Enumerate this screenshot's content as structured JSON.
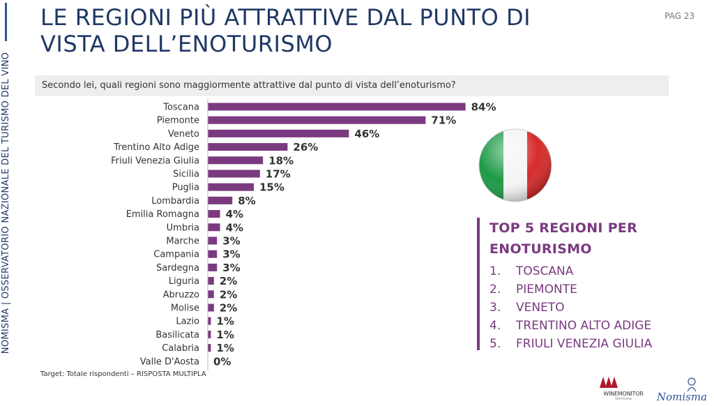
{
  "side_label": "NOMISMA | OSSERVATORIO NAZIONALE DEL TURISMO DEL VINO",
  "title": "LE REGIONI PIÙ ATTRATTIVE DAL PUNTO DI VISTA DELL’ENOTURISMO",
  "page": "PAG 23",
  "question": "Secondo lei, quali regioni sono maggiormente attrattive dal punto di vista dell’enoturismo?",
  "chart_data": {
    "type": "bar",
    "orientation": "horizontal",
    "categories": [
      "Toscana",
      "Piemonte",
      "Veneto",
      "Trentino Alto Adige",
      "Friuli Venezia Giulia",
      "Sicilia",
      "Puglia",
      "Lombardia",
      "Emilia Romagna",
      "Umbria",
      "Marche",
      "Campania",
      "Sardegna",
      "Liguria",
      "Abruzzo",
      "Molise",
      "Lazio",
      "Basilicata",
      "Calabria",
      "Valle D'Aosta"
    ],
    "values": [
      84,
      71,
      46,
      26,
      18,
      17,
      15,
      8,
      4,
      4,
      3,
      3,
      3,
      2,
      2,
      2,
      1,
      1,
      1,
      0
    ],
    "value_labels": [
      "84%",
      "71%",
      "46%",
      "26%",
      "18%",
      "17%",
      "15%",
      "8%",
      "4%",
      "4%",
      "3%",
      "3%",
      "3%",
      "2%",
      "2%",
      "2%",
      "1%",
      "1%",
      "1%",
      "0%"
    ],
    "bar_color": "#7a3a80",
    "xlim": [
      0,
      100
    ],
    "grid": false
  },
  "top5": {
    "title": "TOP 5 REGIONI PER ENOTURISMO",
    "items": [
      {
        "num": "1.",
        "label": "TOSCANA"
      },
      {
        "num": "2.",
        "label": "PIEMONTE"
      },
      {
        "num": "3.",
        "label": "VENETO"
      },
      {
        "num": "4.",
        "label": "TRENTINO ALTO ADIGE"
      },
      {
        "num": "5.",
        "label": "FRIULI VENEZIA GIULIA"
      }
    ]
  },
  "flag_icon": "italian-flag-icon",
  "footnote": "Target: Totale rispondenti – RISPOSTA MULTIPLA",
  "logos": {
    "winemonitor": "WINEMONITOR",
    "winemonitor_sub": "Nomisma",
    "nomisma": "Nomisma"
  },
  "colors": {
    "title": "#1f3864",
    "accent": "#7a3a80",
    "flag_green": "#1e9a46",
    "flag_red": "#d52b2b"
  }
}
